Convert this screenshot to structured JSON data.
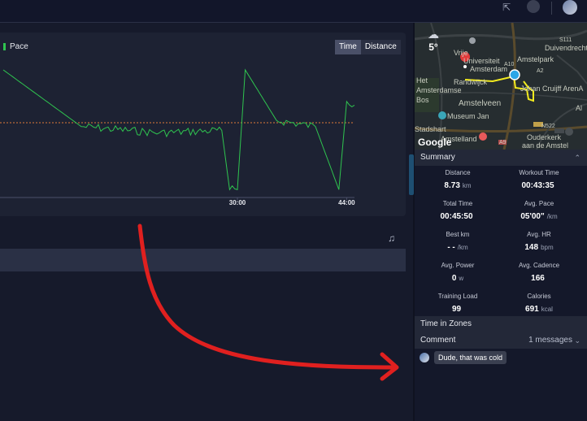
{
  "chart": {
    "legend_label": "Pace",
    "toggle_time": "Time",
    "toggle_distance": "Distance",
    "ticks": [
      "30:00",
      "44:00"
    ],
    "line_color": "#2fc44f",
    "avg_line_color": "#e07a3a"
  },
  "chart_data": {
    "type": "line",
    "title": "",
    "xlabel": "",
    "ylabel": "",
    "series": [
      {
        "name": "Pace",
        "x": [
          0,
          10,
          20,
          28,
          29,
          30,
          31,
          35,
          40,
          43,
          44,
          45
        ],
        "values": [
          100,
          55,
          50,
          52,
          5,
          5,
          100,
          60,
          55,
          5,
          75,
          72
        ]
      }
    ],
    "x_ticks": [
      "30:00",
      "44:00"
    ],
    "grid": false,
    "legend_position": "top-left"
  },
  "map": {
    "temperature": "5°",
    "labels": [
      "Vrije",
      "Universiteit",
      "Amsterdam",
      "Het",
      "Amsterdamse",
      "Bos",
      "Randwijck",
      "Amstelpark",
      "Johan Cruijff ArenA",
      "Amstelveen",
      "Museum Jan",
      "Stadshart",
      "Amstelland",
      "Ouderkerk",
      "aan de Amstel",
      "Duivendrecht",
      "A10",
      "A2",
      "S111",
      "N522",
      "A9",
      "Al"
    ],
    "attribution": "Google"
  },
  "summary": {
    "header": "Summary",
    "stats": [
      {
        "label": "Distance",
        "value": "8.73",
        "unit": "km"
      },
      {
        "label": "Workout Time",
        "value": "00:43:35",
        "unit": ""
      },
      {
        "label": "Total Time",
        "value": "00:45:50",
        "unit": ""
      },
      {
        "label": "Avg. Pace",
        "value": "05'00\"",
        "unit": "/km"
      },
      {
        "label": "Best km",
        "value": "- -",
        "unit": "/km"
      },
      {
        "label": "Avg. HR",
        "value": "148",
        "unit": "bpm"
      },
      {
        "label": "Avg. Power",
        "value": "0",
        "unit": "w"
      },
      {
        "label": "Avg. Cadence",
        "value": "166",
        "unit": ""
      },
      {
        "label": "Training Load",
        "value": "99",
        "unit": ""
      },
      {
        "label": "Calories",
        "value": "691",
        "unit": "kcal"
      }
    ]
  },
  "time_in_zones": {
    "header": "Time in Zones"
  },
  "comment": {
    "header": "Comment",
    "count": "1 messages",
    "messages": [
      {
        "text": "Dude, that was cold"
      }
    ]
  },
  "annotation_color": "#e0201f"
}
